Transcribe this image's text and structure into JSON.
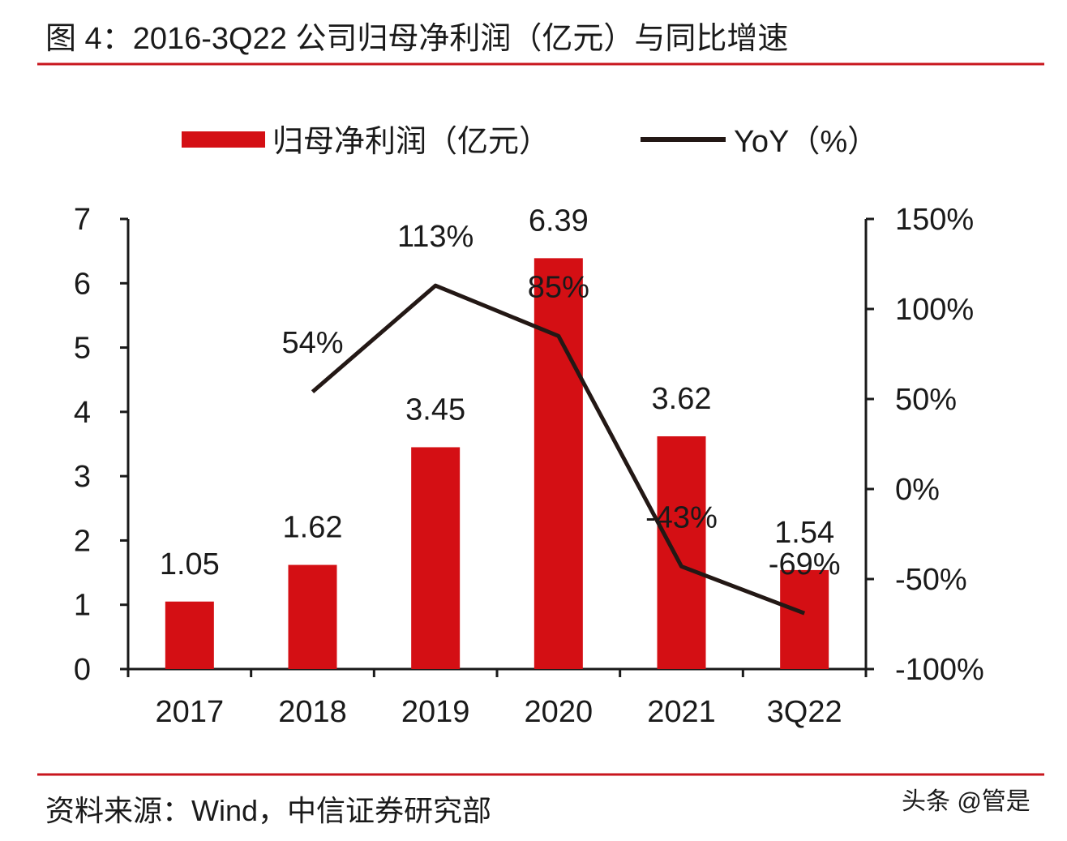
{
  "header": {
    "title": "图 4：2016-3Q22 公司归母净利润（亿元）与同比增速"
  },
  "footer": {
    "source": "资料来源：Wind，中信证券研究部",
    "watermark": "头条 @管是"
  },
  "colors": {
    "bar": "#d40f14",
    "line": "#231815",
    "rule": "#c8161d"
  },
  "chart_data": {
    "type": "bar+line",
    "categories": [
      "2017",
      "2018",
      "2019",
      "2020",
      "2021",
      "3Q22"
    ],
    "series": [
      {
        "name": "归母净利润（亿元）",
        "type": "bar",
        "axis": "left",
        "values": [
          1.05,
          1.62,
          3.45,
          6.39,
          3.62,
          1.54
        ],
        "labels": [
          "1.05",
          "1.62",
          "3.45",
          "6.39",
          "3.62",
          "1.54"
        ]
      },
      {
        "name": "YoY（%）",
        "type": "line",
        "axis": "right",
        "values": [
          null,
          54,
          113,
          85,
          -43,
          -69
        ],
        "labels": [
          "",
          "54%",
          "113%",
          "85%",
          "-43%",
          "-69%"
        ]
      }
    ],
    "left_axis": {
      "range": [
        0,
        7
      ],
      "ticks": [
        "0",
        "1",
        "2",
        "3",
        "4",
        "5",
        "6",
        "7"
      ]
    },
    "right_axis": {
      "range": [
        -100,
        150
      ],
      "ticks": [
        "-100%",
        "-50%",
        "0%",
        "50%",
        "100%",
        "150%"
      ]
    },
    "legend_position": "top",
    "grid": false
  }
}
